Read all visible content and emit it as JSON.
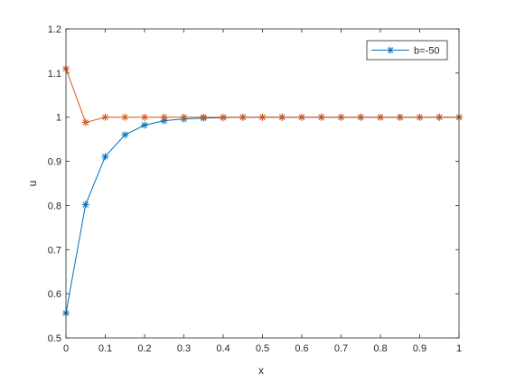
{
  "chart_data": {
    "type": "line",
    "title": "",
    "xlabel": "x",
    "ylabel": "u",
    "xlim": [
      0,
      1
    ],
    "ylim": [
      0.5,
      1.2
    ],
    "xticks": [
      "0",
      "0.1",
      "0.2",
      "0.3",
      "0.4",
      "0.5",
      "0.6",
      "0.7",
      "0.8",
      "0.9",
      "1"
    ],
    "yticks": [
      "0.5",
      "0.6",
      "0.7",
      "0.8",
      "0.9",
      "1",
      "1.1",
      "1.2"
    ],
    "grid": false,
    "legend_position": "top-right",
    "x": [
      0,
      0.05,
      0.1,
      0.15,
      0.2,
      0.25,
      0.3,
      0.35,
      0.4,
      0.45,
      0.5,
      0.55,
      0.6,
      0.65,
      0.7,
      0.75,
      0.8,
      0.85,
      0.9,
      0.95,
      1
    ],
    "series": [
      {
        "name": "b=-50",
        "color": "#0072bd",
        "marker": "asterisk",
        "values": [
          0.556,
          0.802,
          0.911,
          0.96,
          0.982,
          0.992,
          0.996,
          0.998,
          0.999,
          1.0,
          1.0,
          1.0,
          1.0,
          1.0,
          1.0,
          1.0,
          1.0,
          1.0,
          1.0,
          1.0,
          1.0
        ]
      },
      {
        "color": "#d95319",
        "marker": "asterisk",
        "values": [
          1.11,
          0.988,
          1.0,
          1.0,
          1.0,
          1.0,
          1.0,
          1.0,
          1.0,
          1.0,
          1.0,
          1.0,
          1.0,
          1.0,
          1.0,
          1.0,
          1.0,
          1.0,
          1.0,
          1.0,
          1.0
        ]
      }
    ]
  }
}
